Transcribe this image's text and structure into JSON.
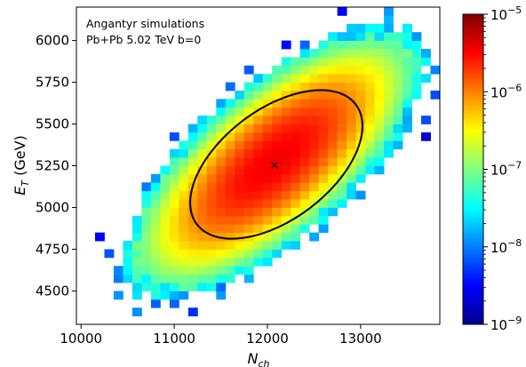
{
  "chart_data": {
    "type": "heatmap",
    "annotations": [
      "Angantyr simulations",
      "Pb+Pb 5.02 TeV b=0"
    ],
    "xlabel": {
      "base": "N",
      "sub": "ch"
    },
    "ylabel": {
      "base": "E",
      "sub": "T",
      "unit": " (GeV)"
    },
    "xlim": [
      9950,
      13850
    ],
    "ylim": [
      4300,
      6200
    ],
    "xticks": [
      10000,
      11000,
      12000,
      13000
    ],
    "yticks": [
      4500,
      4750,
      5000,
      5250,
      5500,
      5750,
      6000
    ],
    "xtick_labels": [
      "10000",
      "11000",
      "12000",
      "13000"
    ],
    "ytick_labels": [
      "4500",
      "4750",
      "5000",
      "5250",
      "5500",
      "5750",
      "6000"
    ],
    "colorbar": {
      "scale": "log",
      "range": [
        1e-09,
        1e-05
      ],
      "tick_labels": [
        {
          "base": "10",
          "exp": "−9"
        },
        {
          "base": "10",
          "exp": "−8"
        },
        {
          "base": "10",
          "exp": "−7"
        },
        {
          "base": "10",
          "exp": "−6"
        },
        {
          "base": "10",
          "exp": "−5"
        }
      ],
      "colormap": "jet"
    },
    "distribution": {
      "mean": [
        12070,
        5275
      ],
      "sigma_x": 520,
      "sigma_y": 260,
      "correlation": 0.72,
      "peak_density": 3.5e-06,
      "bin_width_x": 100,
      "bin_width_y": 50
    },
    "mean_marker": {
      "x": 12070,
      "y": 5275,
      "symbol": "×"
    },
    "contour": {
      "center": [
        12070,
        5285
      ],
      "label": "1-sigma ellipse"
    },
    "grid": false
  }
}
